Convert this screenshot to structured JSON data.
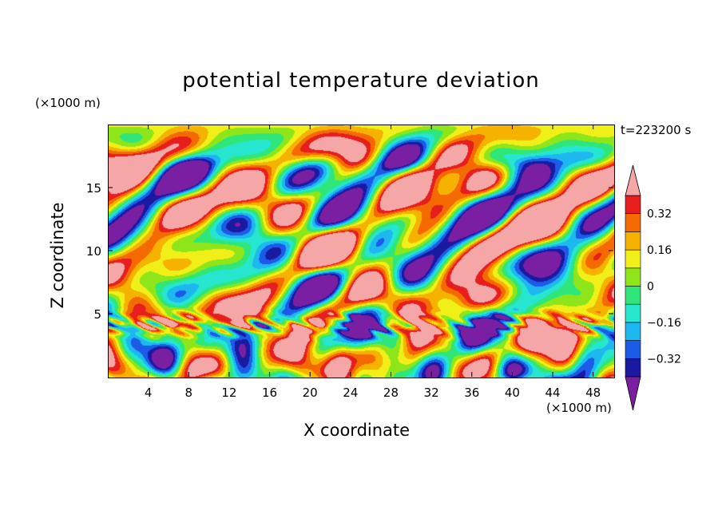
{
  "chart_data": {
    "type": "heatmap",
    "title": "potential temperature deviation",
    "time_label": "t=223200 s",
    "xlabel": "X coordinate",
    "ylabel": "Z coordinate",
    "x_unit": "(×1000 m)",
    "y_unit": "(×1000 m)",
    "xlim": [
      0,
      50
    ],
    "ylim": [
      0,
      20
    ],
    "x_ticks": [
      4,
      8,
      12,
      16,
      20,
      24,
      28,
      32,
      36,
      40,
      44,
      48
    ],
    "y_ticks": [
      5,
      10,
      15
    ],
    "colorbar": {
      "levels": [
        -0.48,
        -0.4,
        -0.32,
        -0.24,
        -0.16,
        -0.08,
        0,
        0.08,
        0.16,
        0.24,
        0.32,
        0.4,
        0.48
      ],
      "labels": [
        "0.32",
        "0.16",
        "0",
        "−0.16",
        "−0.32"
      ],
      "label_values": [
        0.32,
        0.16,
        0,
        -0.16,
        -0.32
      ],
      "colors": [
        "#7a1fa2",
        "#1a1aa0",
        "#1c5be8",
        "#1eb8f0",
        "#26e6d0",
        "#2ee67a",
        "#8ee61a",
        "#f0f018",
        "#f5b300",
        "#f56a00",
        "#e61e1e",
        "#f5a6a6"
      ]
    }
  }
}
